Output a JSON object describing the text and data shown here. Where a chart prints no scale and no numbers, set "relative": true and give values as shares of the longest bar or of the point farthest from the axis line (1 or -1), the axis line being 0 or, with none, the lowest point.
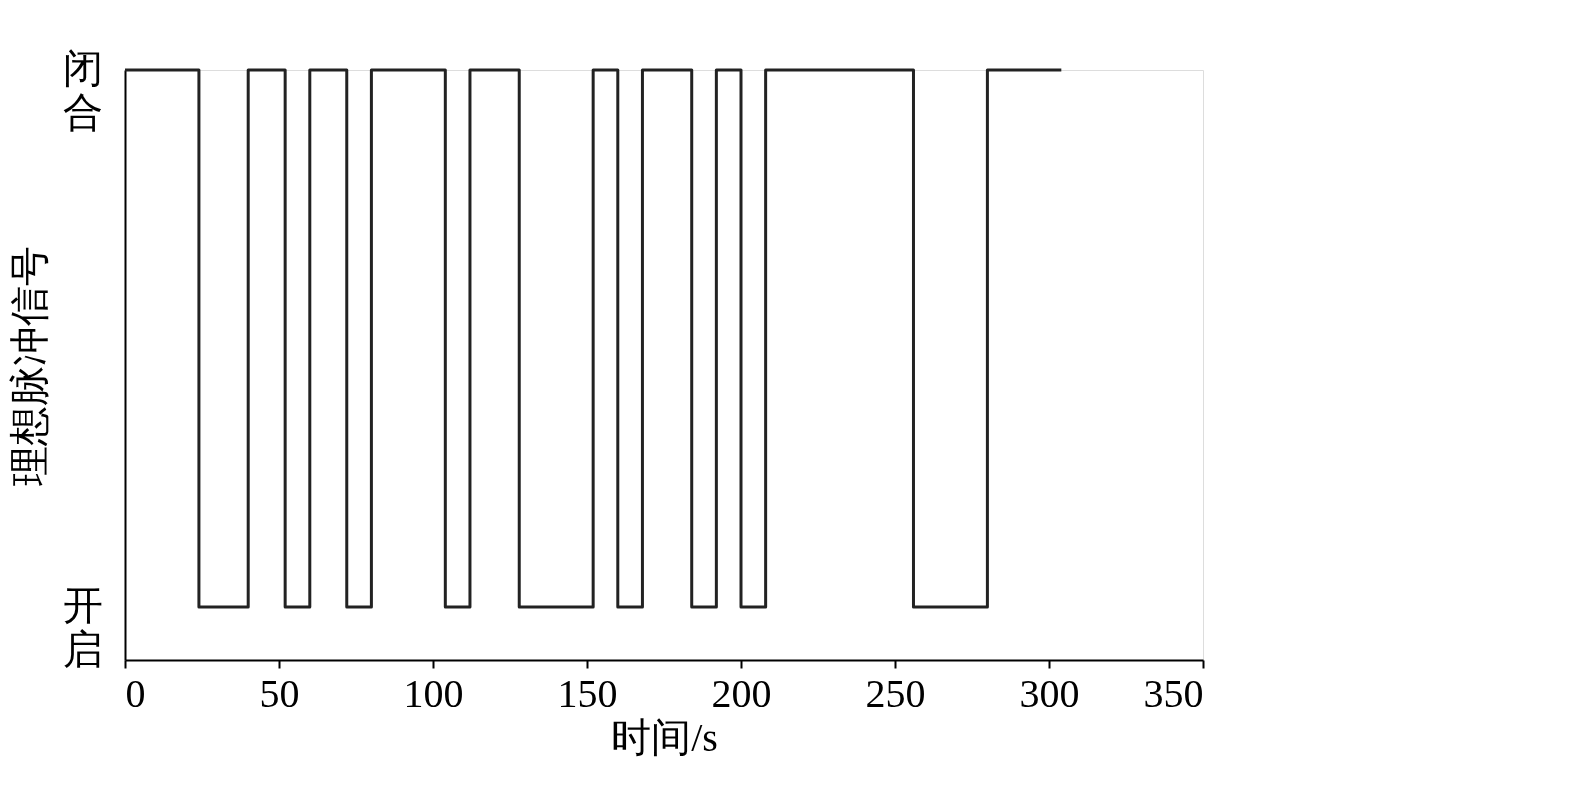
{
  "chart_data": {
    "type": "step",
    "xlabel": "时间/s",
    "ylabel": "理想脉冲信号",
    "relative": true,
    "x": [
      0,
      24,
      40,
      52,
      60,
      72,
      80,
      104,
      112,
      128,
      152,
      160,
      168,
      184,
      192,
      200,
      208,
      256,
      280,
      304
    ],
    "series": [
      {
        "color": "#222222",
        "values": [
          1,
          0.09,
          1,
          0.09,
          1,
          0.09,
          1,
          0.09,
          1,
          0.09,
          1,
          0.09,
          1,
          0.09,
          1,
          0.09,
          1,
          0.09,
          1,
          1
        ]
      }
    ],
    "annotations": [
      "闭合",
      "开启"
    ],
    "xlim": [
      0,
      350
    ],
    "xticks": [
      0,
      50,
      100,
      150,
      200,
      250,
      300,
      350
    ],
    "grid": false,
    "line_style": "solid"
  }
}
